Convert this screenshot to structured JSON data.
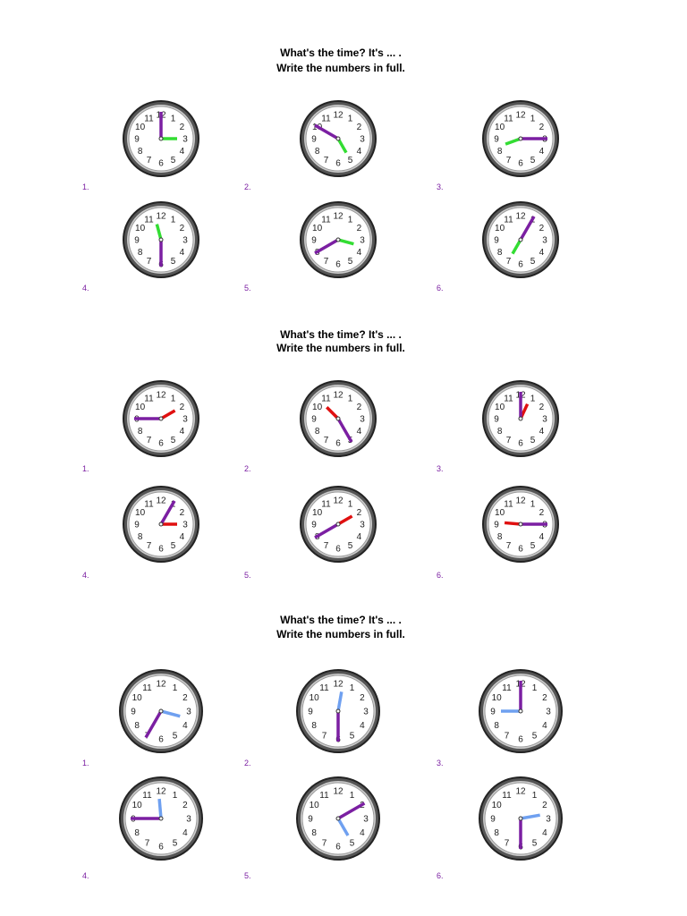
{
  "sections": [
    {
      "title": [
        "What's the time? It's ... .",
        "Write the numbers in full."
      ],
      "items": [
        "1.",
        "2.",
        "3.",
        "4.",
        "5.",
        "6."
      ]
    },
    {
      "title": [
        "What's the time? It's ... .",
        "Write the numbers in full."
      ],
      "items": [
        "1.",
        "2.",
        "3.",
        "4.",
        "5.",
        "6."
      ]
    },
    {
      "title": [
        "What's the time? It's ... .",
        "Write the numbers in full."
      ],
      "items": [
        "1.",
        "2.",
        "3.",
        "4.",
        "5.",
        "6."
      ]
    }
  ],
  "clock_numerals": [
    "12",
    "1",
    "2",
    "3",
    "4",
    "5",
    "6",
    "7",
    "8",
    "9",
    "10",
    "11"
  ]
}
